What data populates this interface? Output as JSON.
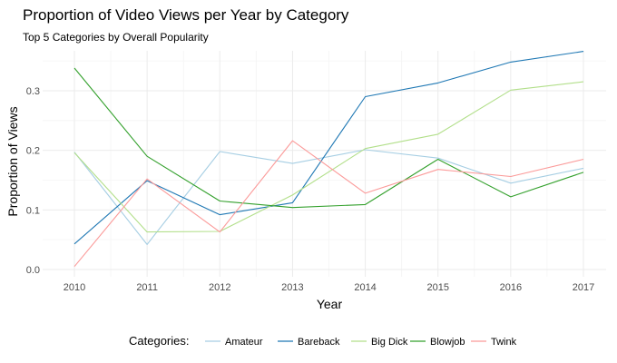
{
  "chart_data": {
    "type": "line",
    "title": "Proportion of Video Views per Year by Category",
    "subtitle": "Top 5 Categories by Overall Popularity",
    "xlabel": "Year",
    "ylabel": "Proportion of Views",
    "x": [
      2010,
      2011,
      2012,
      2013,
      2014,
      2015,
      2016,
      2017
    ],
    "xlim": [
      2010,
      2017
    ],
    "ylim": [
      0,
      0.37
    ],
    "y_ticks": [
      0.0,
      0.1,
      0.2,
      0.3
    ],
    "y_tick_labels": [
      "0.0",
      "0.1",
      "0.2",
      "0.3"
    ],
    "x_tick_labels": [
      "2010",
      "2011",
      "2012",
      "2013",
      "2014",
      "2015",
      "2016",
      "2017"
    ],
    "grid": true,
    "legend_title": "Categories:",
    "legend_position": "bottom",
    "series": [
      {
        "name": "Amateur",
        "color": "#a6cee3",
        "values": [
          0.197,
          0.042,
          0.198,
          0.178,
          0.201,
          0.187,
          0.145,
          0.17
        ]
      },
      {
        "name": "Bareback",
        "color": "#1f78b4",
        "values": [
          0.043,
          0.149,
          0.092,
          0.112,
          0.29,
          0.313,
          0.348,
          0.366
        ]
      },
      {
        "name": "Big Dick",
        "color": "#b2df8a",
        "values": [
          0.196,
          0.063,
          0.064,
          0.125,
          0.203,
          0.227,
          0.301,
          0.315
        ]
      },
      {
        "name": "Blowjob",
        "color": "#33a02c",
        "values": [
          0.338,
          0.19,
          0.115,
          0.104,
          0.109,
          0.185,
          0.122,
          0.163
        ]
      },
      {
        "name": "Twink",
        "color": "#fb9a99",
        "values": [
          0.005,
          0.152,
          0.063,
          0.216,
          0.128,
          0.168,
          0.156,
          0.185
        ]
      }
    ]
  }
}
